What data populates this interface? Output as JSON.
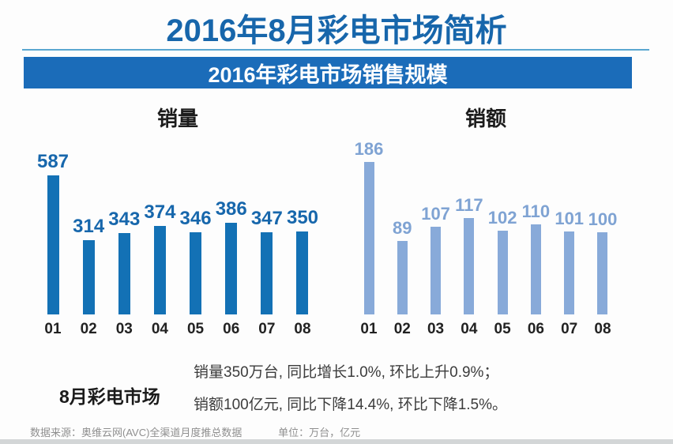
{
  "header": {
    "title": "2016年8月彩电市场简析",
    "title_color": "#1766ab",
    "banner": "2016年彩电市场销售规模",
    "banner_bg": "#1b6cb9",
    "banner_text_color": "#ffffff"
  },
  "chart_data": [
    {
      "type": "bar",
      "title": "销量",
      "categories": [
        "01",
        "02",
        "03",
        "04",
        "05",
        "06",
        "07",
        "08"
      ],
      "values": [
        587,
        314,
        343,
        374,
        346,
        386,
        347,
        350
      ],
      "unit": "万台",
      "bar_color": "#1371b5",
      "label_color": "#1767ac",
      "ylim": [
        0,
        620
      ],
      "grid": false,
      "legend": "none"
    },
    {
      "type": "bar",
      "title": "销额",
      "categories": [
        "01",
        "02",
        "03",
        "04",
        "05",
        "06",
        "07",
        "08"
      ],
      "values": [
        186,
        89,
        107,
        117,
        102,
        110,
        101,
        100
      ],
      "unit": "亿元",
      "bar_color": "#88aad9",
      "label_color": "#7fa3d3",
      "ylim": [
        0,
        200
      ],
      "grid": false,
      "legend": "none"
    }
  ],
  "summary": {
    "label": "8月彩电市场",
    "line1": "销量350万台, 同比增长1.0%, 环比上升0.9%；",
    "line2": "销额100亿元, 同比下降14.4%, 环比下降1.5%。"
  },
  "footer": {
    "source": "数据来源：奥维云网(AVC)全渠道月度推总数据",
    "unit": "单位：万台，亿元"
  }
}
